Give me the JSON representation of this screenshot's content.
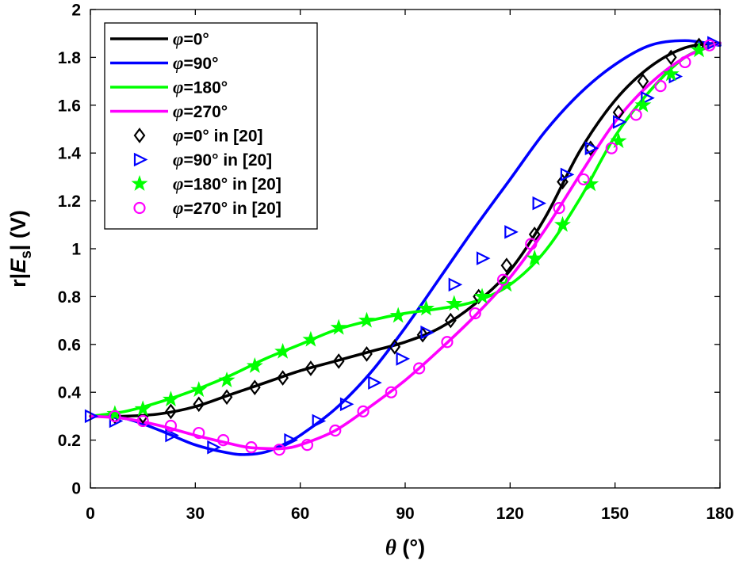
{
  "chart_data": {
    "type": "line",
    "xlabel": "θ (°)",
    "ylabel": "r|E_s| (V)",
    "xlim": [
      0,
      180
    ],
    "ylim": [
      0,
      2
    ],
    "xticks": [
      0,
      30,
      60,
      90,
      120,
      150,
      180
    ],
    "yticks": [
      0,
      0.2,
      0.4,
      0.6,
      0.8,
      1,
      1.2,
      1.4,
      1.6,
      1.8,
      2
    ],
    "ytick_labels": [
      "0",
      "0.2",
      "0.4",
      "0.6",
      "0.8",
      "1",
      "1.2",
      "1.4",
      "1.6",
      "1.8",
      "2"
    ],
    "grid": false,
    "legend_position": "top-left",
    "series": [
      {
        "name": "φ=0°",
        "legend_var": "φ",
        "legend_rest": "=0°",
        "style": "line",
        "color": "#000000",
        "x": [
          0,
          10,
          20,
          30,
          40,
          50,
          60,
          70,
          80,
          90,
          100,
          110,
          120,
          130,
          140,
          150,
          160,
          170,
          180
        ],
        "y": [
          0.3,
          0.3,
          0.31,
          0.34,
          0.39,
          0.44,
          0.49,
          0.53,
          0.57,
          0.61,
          0.67,
          0.77,
          0.91,
          1.13,
          1.41,
          1.62,
          1.76,
          1.84,
          1.86
        ]
      },
      {
        "name": "φ=90°",
        "legend_var": "φ",
        "legend_rest": "=90°",
        "style": "line",
        "color": "#0000ff",
        "x": [
          0,
          10,
          20,
          30,
          40,
          45,
          50,
          55,
          60,
          70,
          80,
          90,
          100,
          110,
          120,
          130,
          140,
          150,
          160,
          170,
          180
        ],
        "y": [
          0.3,
          0.29,
          0.24,
          0.18,
          0.145,
          0.14,
          0.15,
          0.18,
          0.22,
          0.33,
          0.48,
          0.67,
          0.88,
          1.09,
          1.29,
          1.49,
          1.65,
          1.77,
          1.85,
          1.87,
          1.85
        ]
      },
      {
        "name": "φ=180°",
        "legend_var": "φ",
        "legend_rest": "=180°",
        "style": "line",
        "color": "#00ff00",
        "x": [
          0,
          10,
          20,
          30,
          40,
          50,
          60,
          70,
          80,
          90,
          100,
          110,
          120,
          130,
          140,
          150,
          160,
          170,
          180
        ],
        "y": [
          0.3,
          0.32,
          0.36,
          0.41,
          0.47,
          0.54,
          0.6,
          0.66,
          0.7,
          0.73,
          0.75,
          0.78,
          0.85,
          0.99,
          1.21,
          1.47,
          1.66,
          1.8,
          1.86
        ]
      },
      {
        "name": "φ=270°",
        "legend_var": "φ",
        "legend_rest": "=270°",
        "style": "line",
        "color": "#ff00ff",
        "x": [
          0,
          10,
          20,
          30,
          40,
          45,
          50,
          55,
          60,
          70,
          80,
          90,
          100,
          110,
          120,
          130,
          140,
          150,
          160,
          170,
          180
        ],
        "y": [
          0.3,
          0.29,
          0.26,
          0.22,
          0.185,
          0.17,
          0.165,
          0.165,
          0.18,
          0.24,
          0.34,
          0.45,
          0.58,
          0.72,
          0.88,
          1.08,
          1.31,
          1.53,
          1.69,
          1.8,
          1.86
        ]
      },
      {
        "name": "φ=0° in [20]",
        "legend_var": "φ",
        "legend_rest": "=0° in [20]",
        "style": "marker",
        "marker": "diamond",
        "color": "#000000",
        "x": [
          7,
          15,
          23,
          31,
          39,
          47,
          55,
          63,
          71,
          79,
          87,
          95,
          103,
          111,
          119,
          127,
          135,
          143,
          151,
          158,
          166,
          174
        ],
        "y": [
          0.3,
          0.3,
          0.32,
          0.35,
          0.38,
          0.42,
          0.46,
          0.5,
          0.53,
          0.56,
          0.59,
          0.64,
          0.7,
          0.8,
          0.93,
          1.06,
          1.28,
          1.42,
          1.57,
          1.7,
          1.8,
          1.85
        ]
      },
      {
        "name": "φ=90° in [20]",
        "legend_var": "φ",
        "legend_rest": "=90° in [20]",
        "style": "marker",
        "marker": "triangle-right",
        "color": "#0000ff",
        "x": [
          0,
          7,
          23,
          35,
          57,
          65,
          73,
          81,
          89,
          96,
          104,
          112,
          120,
          128,
          136,
          143,
          151,
          159,
          167,
          178
        ],
        "y": [
          0.3,
          0.28,
          0.22,
          0.17,
          0.2,
          0.28,
          0.35,
          0.44,
          0.54,
          0.65,
          0.85,
          0.96,
          1.07,
          1.19,
          1.31,
          1.42,
          1.53,
          1.63,
          1.72,
          1.86
        ]
      },
      {
        "name": "φ=180° in [20]",
        "legend_var": "φ",
        "legend_rest": "=180° in [20]",
        "style": "marker",
        "marker": "star",
        "color": "#00ff00",
        "x": [
          7,
          15,
          23,
          31,
          39,
          47,
          55,
          63,
          71,
          79,
          88,
          96,
          104,
          112,
          119,
          127,
          135,
          143,
          151,
          158,
          166,
          174
        ],
        "y": [
          0.31,
          0.33,
          0.37,
          0.41,
          0.45,
          0.51,
          0.57,
          0.62,
          0.67,
          0.7,
          0.72,
          0.75,
          0.77,
          0.8,
          0.85,
          0.96,
          1.1,
          1.27,
          1.45,
          1.6,
          1.73,
          1.83
        ]
      },
      {
        "name": "φ=270° in [20]",
        "legend_var": "φ",
        "legend_rest": "=270° in [20]",
        "style": "marker",
        "marker": "circle",
        "color": "#ff00ff",
        "x": [
          7,
          15,
          23,
          31,
          38,
          46,
          54,
          62,
          70,
          78,
          86,
          94,
          102,
          110,
          118,
          126,
          134,
          141,
          149,
          156,
          163,
          170,
          177
        ],
        "y": [
          0.3,
          0.28,
          0.26,
          0.23,
          0.2,
          0.17,
          0.16,
          0.18,
          0.24,
          0.32,
          0.4,
          0.5,
          0.61,
          0.73,
          0.87,
          1.02,
          1.17,
          1.29,
          1.42,
          1.56,
          1.68,
          1.78,
          1.85
        ]
      }
    ]
  }
}
